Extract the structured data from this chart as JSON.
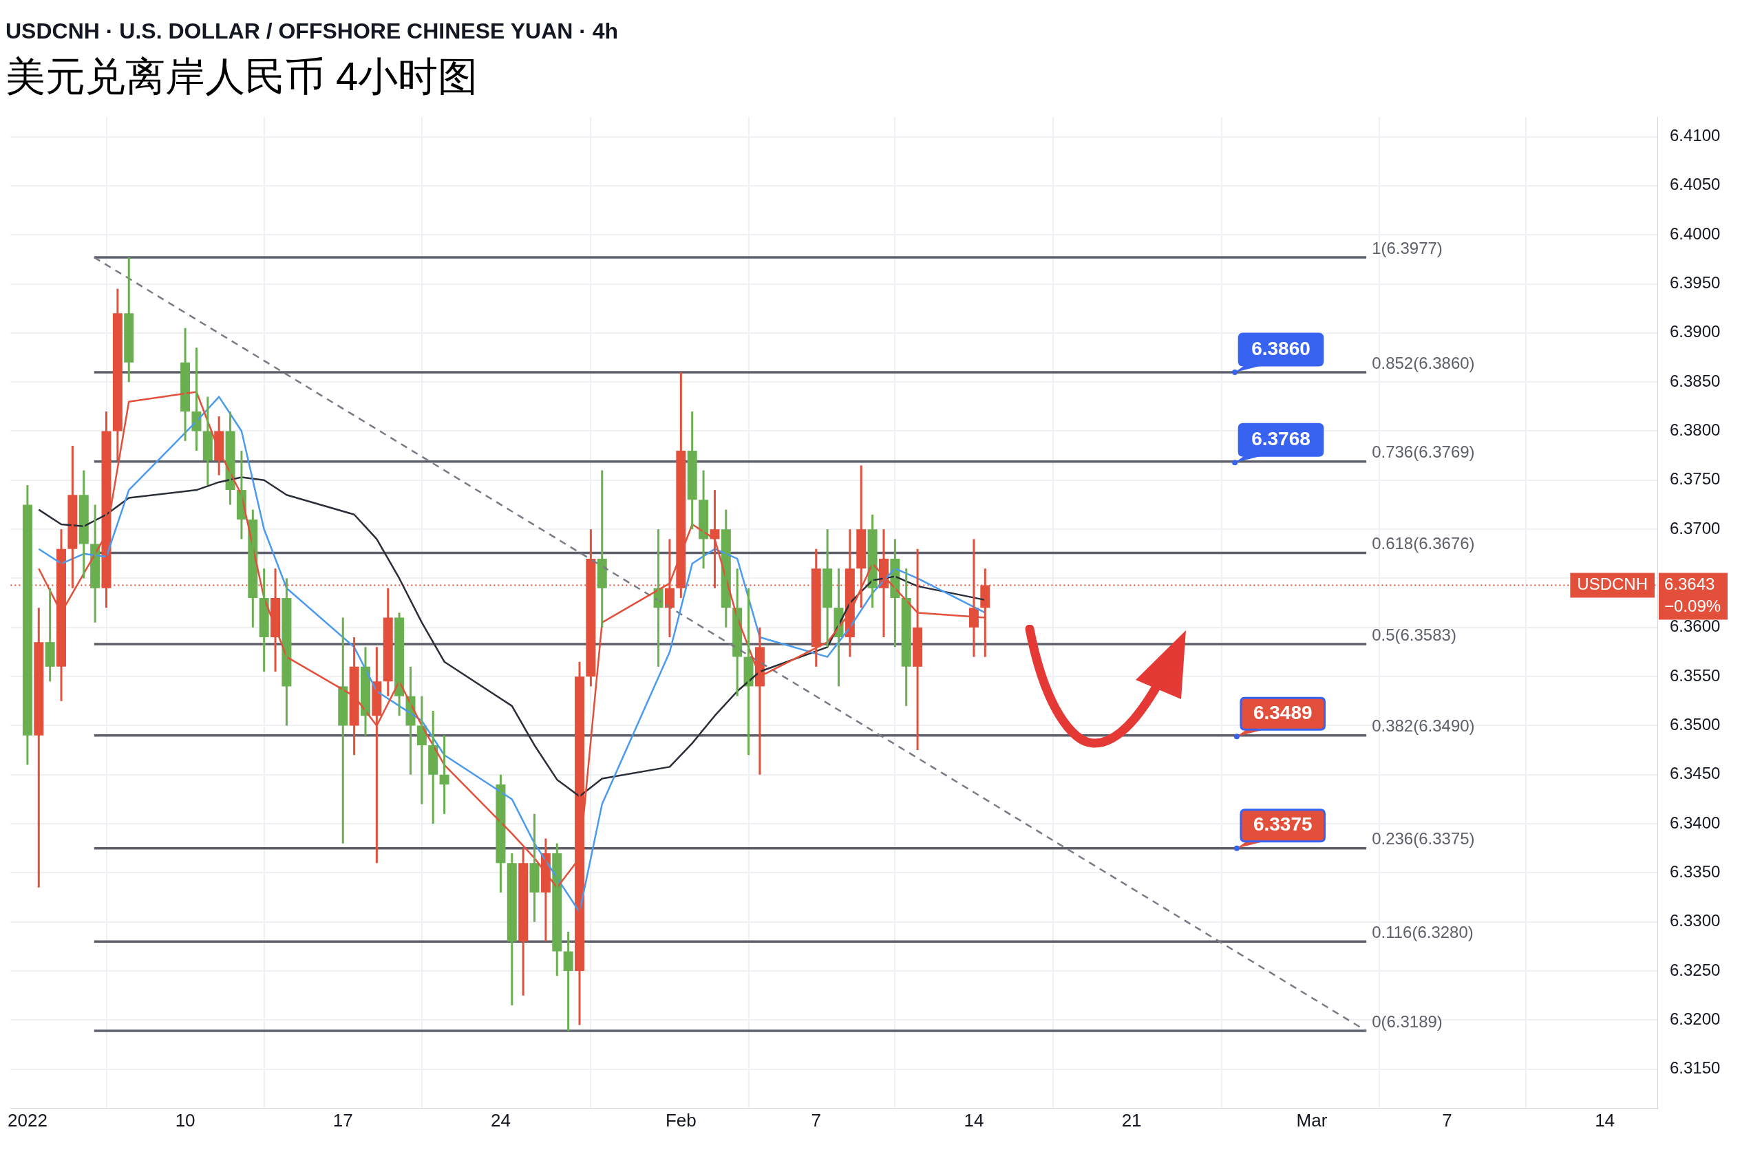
{
  "chart_data": {
    "type": "candlestick",
    "title": "USDCNH · U.S. DOLLAR / OFFSHORE CHINESE YUAN · 4h",
    "subtitle": "美元兑离岸人民币 4小时图",
    "x": [
      "2022-01-03T00:00",
      "2022-01-03T12:00",
      "2022-01-04T00:00",
      "2022-01-04T12:00",
      "2022-01-05T00:00",
      "2022-01-05T12:00",
      "2022-01-06T00:00",
      "2022-01-06T12:00",
      "2022-01-07T00:00",
      "2022-01-07T12:00",
      "2022-01-10T00:00",
      "2022-01-10T12:00",
      "2022-01-11T00:00",
      "2022-01-11T12:00",
      "2022-01-12T00:00",
      "2022-01-12T12:00",
      "2022-01-13T00:00",
      "2022-01-13T12:00",
      "2022-01-14T00:00",
      "2022-01-14T12:00",
      "2022-01-17T00:00",
      "2022-01-17T12:00",
      "2022-01-18T00:00",
      "2022-01-18T12:00",
      "2022-01-19T00:00",
      "2022-01-19T12:00",
      "2022-01-20T00:00",
      "2022-01-20T12:00",
      "2022-01-21T00:00",
      "2022-01-21T12:00",
      "2022-01-24T00:00",
      "2022-01-24T12:00",
      "2022-01-25T00:00",
      "2022-01-25T12:00",
      "2022-01-26T00:00",
      "2022-01-26T12:00",
      "2022-01-27T00:00",
      "2022-01-27T12:00",
      "2022-01-28T00:00",
      "2022-01-28T12:00",
      "2022-01-31T00:00",
      "2022-01-31T12:00",
      "2022-02-01T00:00",
      "2022-02-01T12:00",
      "2022-02-02T00:00",
      "2022-02-02T12:00",
      "2022-02-03T00:00",
      "2022-02-03T12:00",
      "2022-02-04T00:00",
      "2022-02-04T12:00",
      "2022-02-07T00:00",
      "2022-02-07T12:00",
      "2022-02-08T00:00",
      "2022-02-08T12:00",
      "2022-02-09T00:00",
      "2022-02-09T12:00",
      "2022-02-10T00:00",
      "2022-02-10T12:00",
      "2022-02-11T00:00",
      "2022-02-11T12:00",
      "2022-02-14T00:00",
      "2022-02-14T12:00"
    ],
    "ohlc": [
      [
        6.3725,
        6.3745,
        6.346,
        6.349
      ],
      [
        6.349,
        6.362,
        6.3335,
        6.3585
      ],
      [
        6.3585,
        6.364,
        6.3545,
        6.356
      ],
      [
        6.356,
        6.37,
        6.3525,
        6.368
      ],
      [
        6.368,
        6.3785,
        6.364,
        6.3735
      ],
      [
        6.3735,
        6.376,
        6.365,
        6.3685
      ],
      [
        6.3685,
        6.3725,
        6.3605,
        6.364
      ],
      [
        6.364,
        6.382,
        6.362,
        6.38
      ],
      [
        6.38,
        6.3945,
        6.377,
        6.392
      ],
      [
        6.392,
        6.3977,
        6.385,
        6.387
      ],
      [
        6.387,
        6.3905,
        6.379,
        6.382
      ],
      [
        6.382,
        6.3885,
        6.378,
        6.38
      ],
      [
        6.38,
        6.3835,
        6.3745,
        6.377
      ],
      [
        6.377,
        6.3815,
        6.3755,
        6.38
      ],
      [
        6.38,
        6.382,
        6.3725,
        6.374
      ],
      [
        6.374,
        6.378,
        6.369,
        6.371
      ],
      [
        6.371,
        6.372,
        6.36,
        6.363
      ],
      [
        6.363,
        6.366,
        6.3555,
        6.359
      ],
      [
        6.359,
        6.366,
        6.3555,
        6.363
      ],
      [
        6.363,
        6.365,
        6.35,
        6.354
      ],
      [
        6.354,
        6.361,
        6.338,
        6.35
      ],
      [
        6.35,
        6.359,
        6.347,
        6.356
      ],
      [
        6.356,
        6.358,
        6.349,
        6.351
      ],
      [
        6.351,
        6.358,
        6.336,
        6.3545
      ],
      [
        6.3545,
        6.364,
        6.353,
        6.361
      ],
      [
        6.361,
        6.3615,
        6.351,
        6.353
      ],
      [
        6.353,
        6.356,
        6.345,
        6.35
      ],
      [
        6.35,
        6.353,
        6.342,
        6.348
      ],
      [
        6.348,
        6.3515,
        6.34,
        6.345
      ],
      [
        6.345,
        6.349,
        6.341,
        6.344
      ],
      [
        6.344,
        6.345,
        6.333,
        6.336
      ],
      [
        6.336,
        6.337,
        6.3215,
        6.328
      ],
      [
        6.328,
        6.3375,
        6.3225,
        6.336
      ],
      [
        6.336,
        6.341,
        6.33,
        6.333
      ],
      [
        6.333,
        6.3385,
        6.328,
        6.337
      ],
      [
        6.337,
        6.338,
        6.3245,
        6.327
      ],
      [
        6.327,
        6.329,
        6.3189,
        6.325
      ],
      [
        6.325,
        6.3565,
        6.3195,
        6.355
      ],
      [
        6.355,
        6.37,
        6.354,
        6.367
      ],
      [
        6.367,
        6.376,
        6.36,
        6.364
      ],
      [
        6.364,
        6.37,
        6.356,
        6.362
      ],
      [
        6.362,
        6.369,
        6.359,
        6.364
      ],
      [
        6.364,
        6.386,
        6.363,
        6.378
      ],
      [
        6.378,
        6.382,
        6.37,
        6.373
      ],
      [
        6.373,
        6.376,
        6.366,
        6.369
      ],
      [
        6.369,
        6.374,
        6.364,
        6.37
      ],
      [
        6.37,
        6.372,
        6.36,
        6.362
      ],
      [
        6.362,
        6.366,
        6.353,
        6.357
      ],
      [
        6.357,
        6.364,
        6.347,
        6.354
      ],
      [
        6.354,
        6.36,
        6.345,
        6.358
      ],
      [
        6.358,
        6.368,
        6.356,
        6.366
      ],
      [
        6.366,
        6.37,
        6.358,
        6.362
      ],
      [
        6.362,
        6.366,
        6.354,
        6.359
      ],
      [
        6.359,
        6.37,
        6.357,
        6.366
      ],
      [
        6.366,
        6.3765,
        6.362,
        6.37
      ],
      [
        6.37,
        6.3715,
        6.362,
        6.364
      ],
      [
        6.364,
        6.37,
        6.359,
        6.367
      ],
      [
        6.367,
        6.369,
        6.358,
        6.363
      ],
      [
        6.363,
        6.366,
        6.352,
        6.356
      ],
      [
        6.356,
        6.368,
        6.3475,
        6.36
      ],
      [
        6.36,
        6.369,
        6.357,
        6.362
      ],
      [
        6.362,
        6.366,
        6.357,
        6.3643
      ]
    ],
    "series": [
      {
        "type": "line",
        "color": "#e2503c",
        "x": [
          "2022-01-03T12:00",
          "2022-01-04T12:00",
          "2022-01-05T12:00",
          "2022-01-06T12:00",
          "2022-01-07T12:00",
          "2022-01-10T12:00",
          "2022-01-11T12:00",
          "2022-01-12T12:00",
          "2022-01-13T12:00",
          "2022-01-14T12:00",
          "2022-01-17T12:00",
          "2022-01-18T12:00",
          "2022-01-19T12:00",
          "2022-01-20T12:00",
          "2022-01-21T12:00",
          "2022-01-24T12:00",
          "2022-01-25T12:00",
          "2022-01-26T12:00",
          "2022-01-27T12:00",
          "2022-01-28T12:00",
          "2022-01-31T12:00",
          "2022-02-01T12:00",
          "2022-02-02T12:00",
          "2022-02-03T12:00",
          "2022-02-04T12:00",
          "2022-02-07T12:00",
          "2022-02-08T12:00",
          "2022-02-09T12:00",
          "2022-02-10T12:00",
          "2022-02-11T12:00",
          "2022-02-14T12:00"
        ],
        "values": [
          6.366,
          6.3615,
          6.3655,
          6.3695,
          6.383,
          6.384,
          6.378,
          6.3735,
          6.363,
          6.357,
          6.353,
          6.35,
          6.3545,
          6.35,
          6.346,
          6.339,
          6.3365,
          6.3335,
          6.3365,
          6.3605,
          6.3645,
          6.3705,
          6.369,
          6.361,
          6.355,
          6.3585,
          6.3615,
          6.3665,
          6.364,
          6.3615,
          6.361
        ]
      },
      {
        "type": "line",
        "color": "#4a9af0",
        "x": [
          "2022-01-03T12:00",
          "2022-01-04T12:00",
          "2022-01-05T12:00",
          "2022-01-06T12:00",
          "2022-01-07T12:00",
          "2022-01-10T12:00",
          "2022-01-11T12:00",
          "2022-01-12T12:00",
          "2022-01-13T12:00",
          "2022-01-14T12:00",
          "2022-01-17T12:00",
          "2022-01-18T12:00",
          "2022-01-19T12:00",
          "2022-01-20T12:00",
          "2022-01-21T12:00",
          "2022-01-24T12:00",
          "2022-01-25T12:00",
          "2022-01-26T12:00",
          "2022-01-27T12:00",
          "2022-01-28T12:00",
          "2022-01-31T12:00",
          "2022-02-01T12:00",
          "2022-02-02T12:00",
          "2022-02-03T12:00",
          "2022-02-04T12:00",
          "2022-02-07T12:00",
          "2022-02-08T12:00",
          "2022-02-09T12:00",
          "2022-02-10T12:00",
          "2022-02-11T12:00",
          "2022-02-14T12:00"
        ],
        "values": [
          6.368,
          6.3665,
          6.3675,
          6.3672,
          6.374,
          6.381,
          6.3835,
          6.38,
          6.37,
          6.364,
          6.358,
          6.3535,
          6.352,
          6.3505,
          6.347,
          6.3425,
          6.338,
          6.3345,
          6.331,
          6.342,
          6.3575,
          6.3665,
          6.368,
          6.367,
          6.359,
          6.357,
          6.36,
          6.3635,
          6.366,
          6.365,
          6.3615
        ]
      },
      {
        "type": "line",
        "color": "#2a2e39",
        "x": [
          "2022-01-03T12:00",
          "2022-01-04T12:00",
          "2022-01-05T12:00",
          "2022-01-06T12:00",
          "2022-01-07T12:00",
          "2022-01-10T12:00",
          "2022-01-11T12:00",
          "2022-01-12T12:00",
          "2022-01-13T12:00",
          "2022-01-14T12:00",
          "2022-01-17T12:00",
          "2022-01-18T12:00",
          "2022-01-19T12:00",
          "2022-01-20T12:00",
          "2022-01-21T12:00",
          "2022-01-24T12:00",
          "2022-01-25T12:00",
          "2022-01-26T12:00",
          "2022-01-27T12:00",
          "2022-01-28T12:00",
          "2022-01-31T12:00",
          "2022-02-01T12:00",
          "2022-02-02T12:00",
          "2022-02-03T12:00",
          "2022-02-04T12:00",
          "2022-02-07T12:00",
          "2022-02-08T12:00",
          "2022-02-09T12:00",
          "2022-02-10T12:00",
          "2022-02-11T12:00",
          "2022-02-14T12:00"
        ],
        "values": [
          6.372,
          6.3705,
          6.3703,
          6.3715,
          6.3732,
          6.374,
          6.3748,
          6.3753,
          6.375,
          6.3735,
          6.3715,
          6.369,
          6.365,
          6.3605,
          6.3565,
          6.352,
          6.348,
          6.3445,
          6.3428,
          6.3446,
          6.3458,
          6.3482,
          6.351,
          6.3535,
          6.3555,
          6.358,
          6.3625,
          6.3648,
          6.3652,
          6.3642,
          6.3628
        ]
      },
      {
        "type": "line",
        "color": "#787b86",
        "line_style": "dashed",
        "x": [
          "2022-01-05T23:00",
          "2022-03-03T10:00"
        ],
        "values": [
          6.3977,
          6.3189
        ]
      }
    ],
    "ref_lines": [
      {
        "axis": "y",
        "value": 6.3977,
        "label": "1(6.3977)",
        "color": "#5d606b"
      },
      {
        "axis": "y",
        "value": 6.386,
        "label": "0.852(6.3860)",
        "color": "#5d606b"
      },
      {
        "axis": "y",
        "value": 6.3769,
        "label": "0.736(6.3769)",
        "color": "#5d606b"
      },
      {
        "axis": "y",
        "value": 6.3676,
        "label": "0.618(6.3676)",
        "color": "#5d606b"
      },
      {
        "axis": "y",
        "value": 6.3583,
        "label": "0.5(6.3583)",
        "color": "#5d606b"
      },
      {
        "axis": "y",
        "value": 6.349,
        "label": "0.382(6.3490)",
        "color": "#5d606b"
      },
      {
        "axis": "y",
        "value": 6.3375,
        "label": "0.236(6.3375)",
        "color": "#5d606b"
      },
      {
        "axis": "y",
        "value": 6.328,
        "label": "0.116(6.3280)",
        "color": "#5d606b"
      },
      {
        "axis": "y",
        "value": 6.3189,
        "label": "0(6.3189)",
        "color": "#5d606b"
      },
      {
        "axis": "y",
        "value": 6.3643,
        "label": "USDCNH",
        "color": "#e2503c",
        "line_style": "dotted"
      }
    ],
    "annotations": [
      {
        "text": "6.3860",
        "x": "2022-02-25T14:00",
        "y": 6.386
      },
      {
        "text": "6.3768",
        "x": "2022-02-25T14:00",
        "y": 6.3768
      },
      {
        "text": "6.3489",
        "x": "2022-02-25T16:00",
        "y": 6.3489
      },
      {
        "text": "6.3375",
        "x": "2022-02-25T16:00",
        "y": 6.3375
      },
      "6.3643",
      "−0.09%"
    ],
    "xlim": [
      "2022-01-02T06:00",
      "2022-03-16T08:00"
    ],
    "xticks": [
      {
        "value": "2022-01-03",
        "label": "2022"
      },
      {
        "value": "2022-01-10",
        "label": "10"
      },
      {
        "value": "2022-01-17",
        "label": "17"
      },
      {
        "value": "2022-01-24",
        "label": "24"
      },
      {
        "value": "2022-02-01",
        "label": "Feb"
      },
      {
        "value": "2022-02-07",
        "label": "7"
      },
      {
        "value": "2022-02-14",
        "label": "14"
      },
      {
        "value": "2022-02-21",
        "label": "21"
      },
      {
        "value": "2022-03-01",
        "label": "Mar"
      },
      {
        "value": "2022-03-07",
        "label": "7"
      },
      {
        "value": "2022-03-14",
        "label": "14"
      }
    ],
    "ylim": [
      6.311,
      6.412
    ],
    "yticks": [
      {
        "value": 6.315,
        "label": "6.3150"
      },
      {
        "value": 6.32,
        "label": "6.3200"
      },
      {
        "value": 6.325,
        "label": "6.3250"
      },
      {
        "value": 6.33,
        "label": "6.3300"
      },
      {
        "value": 6.335,
        "label": "6.3350"
      },
      {
        "value": 6.34,
        "label": "6.3400"
      },
      {
        "value": 6.345,
        "label": "6.3450"
      },
      {
        "value": 6.35,
        "label": "6.3500"
      },
      {
        "value": 6.355,
        "label": "6.3550"
      },
      {
        "value": 6.36,
        "label": "6.3600"
      },
      {
        "value": 6.365,
        "label": null
      },
      {
        "value": 6.37,
        "label": "6.3700"
      },
      {
        "value": 6.375,
        "label": "6.3750"
      },
      {
        "value": 6.38,
        "label": "6.3800"
      },
      {
        "value": 6.385,
        "label": "6.3850"
      },
      {
        "value": 6.39,
        "label": "6.3900"
      },
      {
        "value": 6.395,
        "label": "6.3950"
      },
      {
        "value": 6.4,
        "label": "6.4000"
      },
      {
        "value": 6.405,
        "label": "6.4050"
      },
      {
        "value": 6.41,
        "label": "6.4100"
      }
    ],
    "grid": true,
    "marker": "none"
  }
}
